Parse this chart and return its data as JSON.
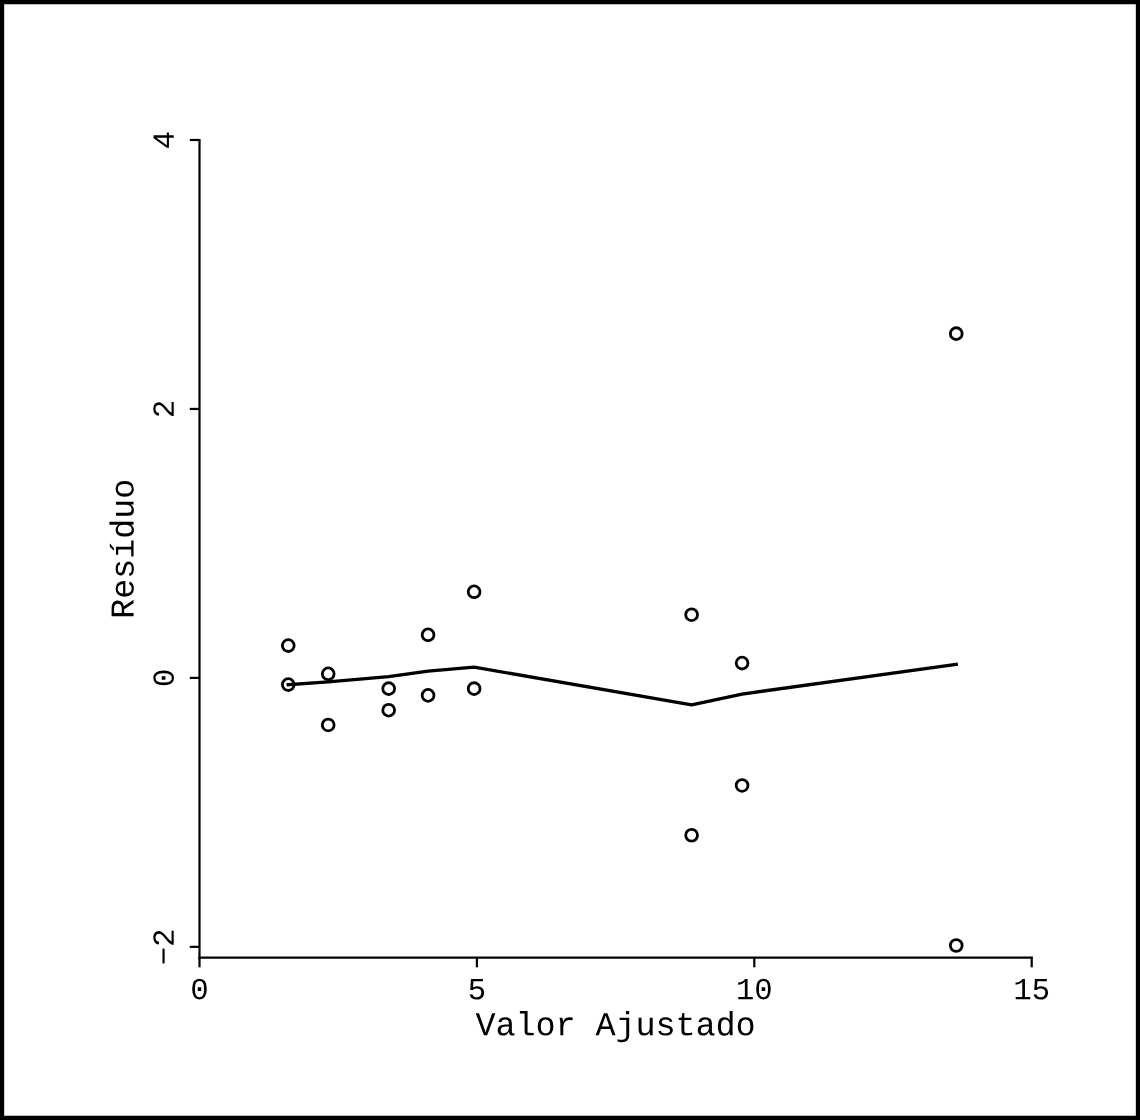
{
  "chart_data": {
    "type": "scatter",
    "xlabel": "Valor Ajustado",
    "ylabel": "Resíduo",
    "xlim": [
      0,
      15
    ],
    "ylim": [
      -2.08,
      4
    ],
    "xticks": [
      0,
      5,
      10,
      15
    ],
    "yticks": [
      {
        "value": -2,
        "label": "−2"
      },
      0,
      2,
      4
    ],
    "grid": false,
    "series": [
      {
        "marker": "circle",
        "color": "#000000",
        "x": [
          1.6,
          1.6,
          2.32,
          2.32,
          3.41,
          3.41,
          4.12,
          4.12,
          4.95,
          4.95,
          8.87,
          8.87,
          9.78,
          9.78,
          13.64,
          13.64
        ],
        "values": [
          0.24,
          -0.05,
          0.03,
          -0.35,
          -0.08,
          -0.24,
          0.32,
          -0.13,
          0.64,
          -0.08,
          0.47,
          -1.17,
          0.11,
          -0.8,
          -1.99,
          2.56
        ]
      },
      {
        "type": "line",
        "color": "#000000",
        "x": [
          1.6,
          2.32,
          3.41,
          4.12,
          4.95,
          8.87,
          9.78,
          13.64
        ],
        "values": [
          -0.05,
          -0.03,
          0.01,
          0.05,
          0.08,
          -0.2,
          -0.12,
          0.1
        ]
      }
    ]
  }
}
